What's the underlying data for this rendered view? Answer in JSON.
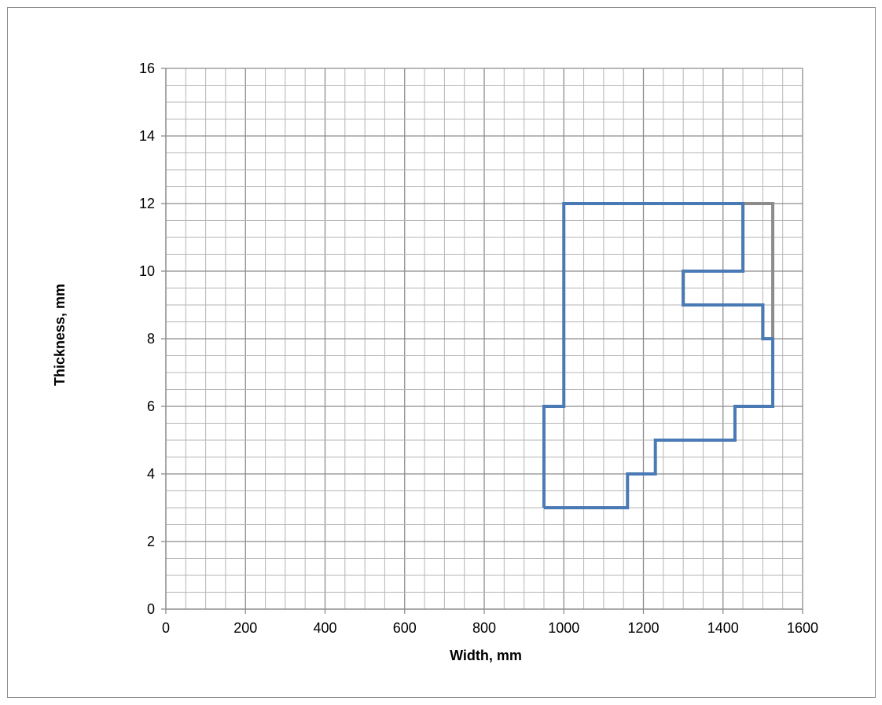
{
  "chart_data": {
    "type": "line",
    "title": "",
    "xlabel": "Width, mm",
    "ylabel": "Thickness, mm",
    "xlim": [
      0,
      1600
    ],
    "ylim": [
      0,
      16
    ],
    "x_ticks": [
      0,
      200,
      400,
      600,
      800,
      1000,
      1200,
      1400,
      1600
    ],
    "y_ticks": [
      0,
      2,
      4,
      6,
      8,
      10,
      12,
      14,
      16
    ],
    "x_minor_step": 50,
    "y_minor_step": 0.5,
    "grid": true,
    "legend": "none",
    "series": [
      {
        "color": "#4a7ab5",
        "points": [
          [
            950,
            3
          ],
          [
            1160,
            3
          ],
          [
            1160,
            4
          ],
          [
            1230,
            4
          ],
          [
            1230,
            5
          ],
          [
            1430,
            5
          ],
          [
            1430,
            6
          ],
          [
            1525,
            6
          ],
          [
            1525,
            8
          ],
          [
            1500,
            8
          ],
          [
            1500,
            9
          ],
          [
            1300,
            9
          ],
          [
            1300,
            10
          ],
          [
            1450,
            10
          ],
          [
            1450,
            12
          ],
          [
            1000,
            12
          ],
          [
            1000,
            6
          ],
          [
            950,
            6
          ],
          [
            950,
            3
          ]
        ]
      },
      {
        "color": "#8c8c8c",
        "points": [
          [
            1450,
            12
          ],
          [
            1525,
            12
          ],
          [
            1525,
            8
          ],
          [
            1500,
            8
          ],
          [
            1500,
            9
          ],
          [
            1300,
            9
          ],
          [
            1300,
            10
          ],
          [
            1450,
            10
          ],
          [
            1450,
            12
          ]
        ]
      }
    ]
  }
}
